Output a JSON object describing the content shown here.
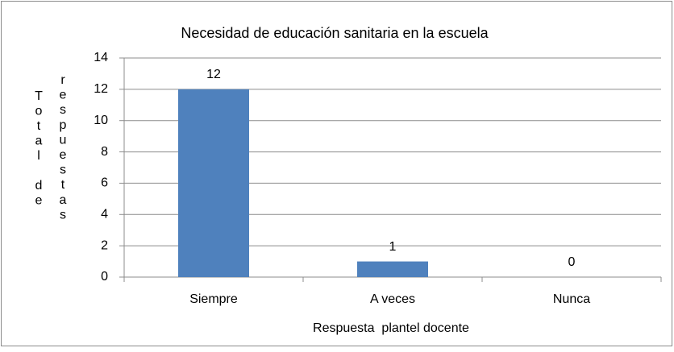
{
  "chart_data": {
    "type": "bar",
    "title": "Necesidad de educación sanitaria en la escuela",
    "x_label": "Respuesta  plantel docente",
    "y_label": "Total de respuestas",
    "categories": [
      "Siempre",
      "A veces",
      "Nunca"
    ],
    "values": [
      12,
      1,
      0
    ],
    "color": "#4f81bd",
    "ylim": [
      0,
      14
    ],
    "yticks": [
      0,
      2,
      4,
      6,
      8,
      10,
      12,
      14
    ],
    "grid": true
  }
}
